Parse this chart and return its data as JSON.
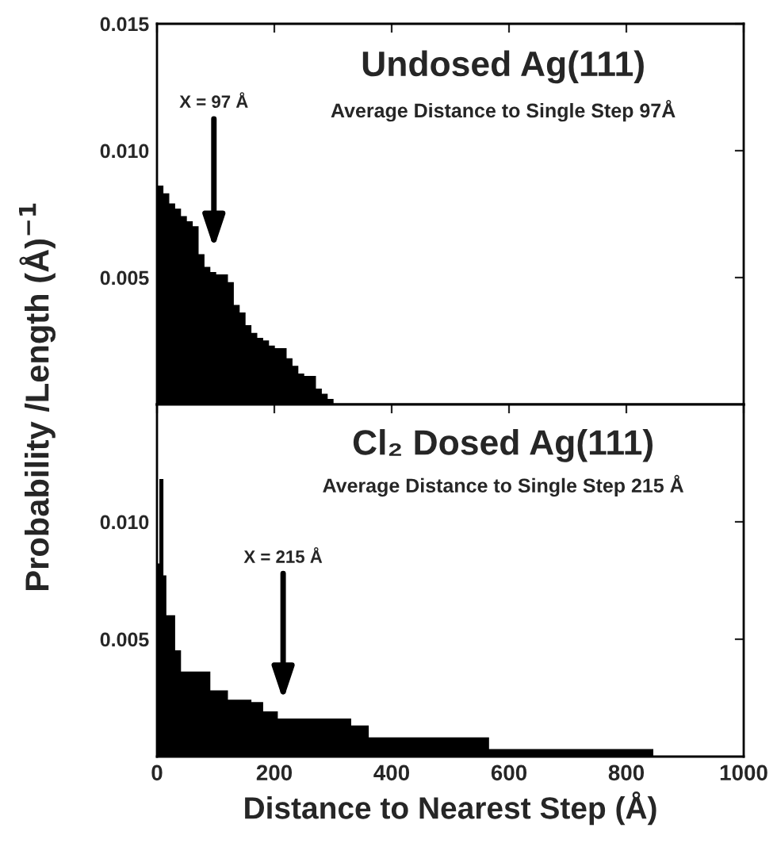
{
  "chart_data": [
    {
      "type": "histogram",
      "title": "Undosed Ag(111)",
      "subtitle": "Average Distance to Single Step 97Å",
      "ylabel": "Probability /Length (Å)$^{−1}$",
      "bins": [
        0,
        10,
        20,
        30,
        40,
        50,
        60,
        70,
        80,
        90,
        100,
        110,
        120,
        130,
        140,
        150,
        160,
        170,
        180,
        190,
        200,
        210,
        220,
        230,
        240,
        250,
        260,
        270,
        280,
        290,
        300
      ],
      "values": [
        0.0086,
        0.0083,
        0.0079,
        0.0077,
        0.0074,
        0.0072,
        0.007,
        0.0059,
        0.0054,
        0.0052,
        0.0051,
        0.0051,
        0.0048,
        0.0039,
        0.0036,
        0.0031,
        0.0028,
        0.0026,
        0.0025,
        0.0023,
        0.0022,
        0.0022,
        0.0018,
        0.0015,
        0.0012,
        0.0011,
        0.0011,
        0.0006,
        0.0004,
        0.0002
      ],
      "color": "#000000",
      "xlim": [
        0,
        1000
      ],
      "ylim": [
        0,
        0.015
      ],
      "xticks": [
        0,
        200,
        400,
        600,
        800,
        1000
      ],
      "yticks": [
        {
          "value": 0.005,
          "label": "0.005"
        },
        {
          "value": 0.01,
          "label": "0.010"
        },
        {
          "value": 0.015,
          "label": "0.015"
        }
      ],
      "tick_labels": "y",
      "annotations": [
        "X = 97 Å"
      ]
    },
    {
      "type": "histogram",
      "title": "Cl₂ Dosed Ag(111)",
      "subtitle": "Average Distance to Single Step 215 Å",
      "xlabel": "Distance to Nearest Step (Å)",
      "bins": [
        0,
        5,
        10,
        15,
        30,
        40,
        90,
        120,
        160,
        180,
        205,
        330,
        360,
        565,
        845
      ],
      "values": [
        0.0082,
        0.0118,
        0.0077,
        0.006,
        0.0045,
        0.0036,
        0.0028,
        0.0024,
        0.0023,
        0.0019,
        0.0016,
        0.0013,
        0.0008,
        0.0003
      ],
      "color": "#000000",
      "xlim": [
        0,
        1000
      ],
      "ylim": [
        0,
        0.015
      ],
      "xticks": [
        0,
        200,
        400,
        600,
        800,
        1000
      ],
      "yticks": [
        {
          "value": 0.005,
          "label": "0.005"
        },
        {
          "value": 0.01,
          "label": "0.010"
        }
      ],
      "annotations": [
        "X = 215 Å"
      ]
    }
  ]
}
